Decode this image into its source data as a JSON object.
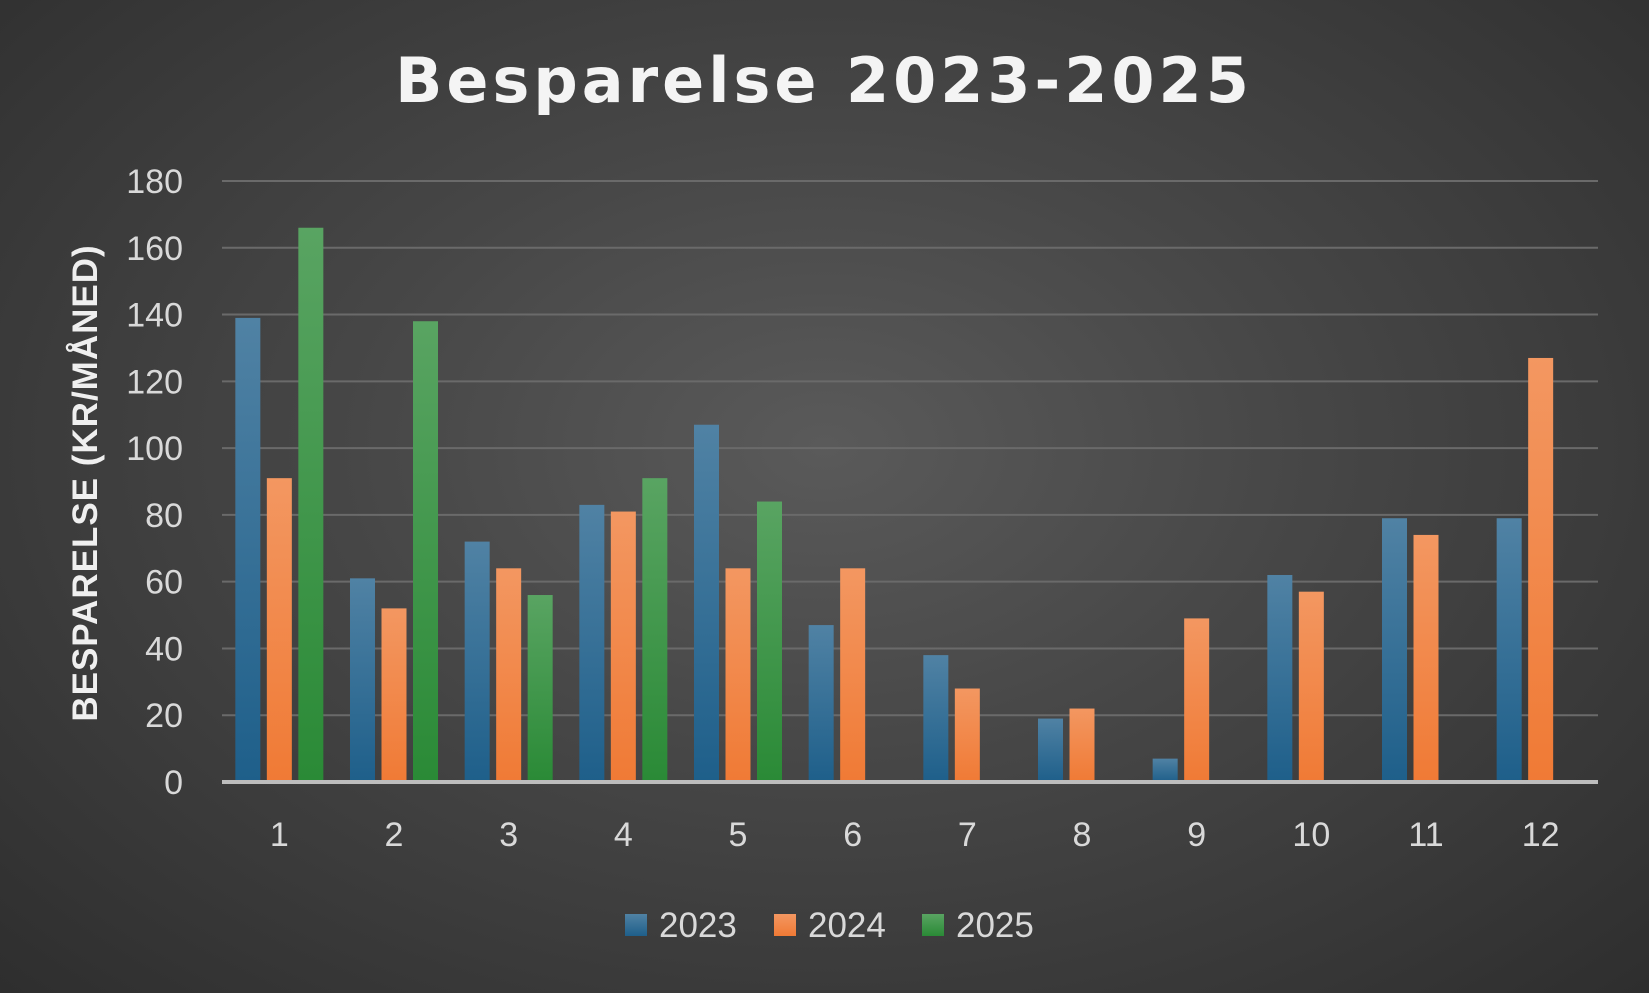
{
  "chart_data": {
    "type": "bar",
    "title": "Besparelse 2023-2025",
    "xlabel": "",
    "ylabel": "BESPARELSE (KR/MÅNED)",
    "categories": [
      "1",
      "2",
      "3",
      "4",
      "5",
      "6",
      "7",
      "8",
      "9",
      "10",
      "11",
      "12"
    ],
    "ylim": [
      0,
      180
    ],
    "yticks": [
      0,
      20,
      40,
      60,
      80,
      100,
      120,
      140,
      160,
      180
    ],
    "grid": true,
    "legend_position": "bottom",
    "series": [
      {
        "name": "2023",
        "color": "#1e5f8a",
        "values": [
          139,
          61,
          72,
          83,
          107,
          47,
          38,
          19,
          7,
          62,
          79,
          79
        ]
      },
      {
        "name": "2024",
        "color": "#f07a35",
        "values": [
          91,
          52,
          64,
          81,
          64,
          64,
          28,
          22,
          49,
          57,
          74,
          127
        ]
      },
      {
        "name": "2025",
        "color": "#2a8a36",
        "values": [
          166,
          138,
          56,
          91,
          84,
          null,
          null,
          null,
          null,
          null,
          null,
          null
        ]
      }
    ]
  }
}
